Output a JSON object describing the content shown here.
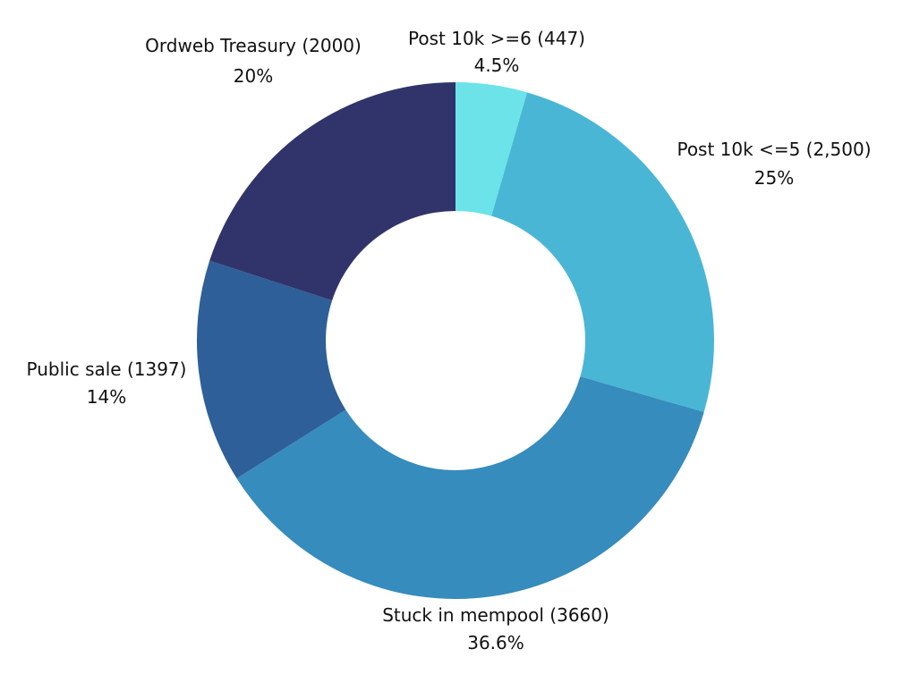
{
  "chart_data": {
    "type": "pie",
    "variant": "donut",
    "start_angle_deg": 0,
    "direction": "clockwise",
    "slices": [
      {
        "label": "Post 10k >=6 (447)",
        "percent_label": "4.5%",
        "value": 447,
        "color": "#6be3e8"
      },
      {
        "label": "Post 10k <=5 (2,500)",
        "percent_label": "25%",
        "value": 2500,
        "color": "#4ab6d6"
      },
      {
        "label": "Stuck in mempool (3660)",
        "percent_label": "36.6%",
        "value": 3660,
        "color": "#368cbc"
      },
      {
        "label": "Public sale (1397)",
        "percent_label": "14%",
        "value": 1397,
        "color": "#2e5f98"
      },
      {
        "label": "Ordweb Treasury (2000)",
        "percent_label": "20%",
        "value": 2000,
        "color": "#30346b"
      }
    ],
    "legend": "none"
  }
}
